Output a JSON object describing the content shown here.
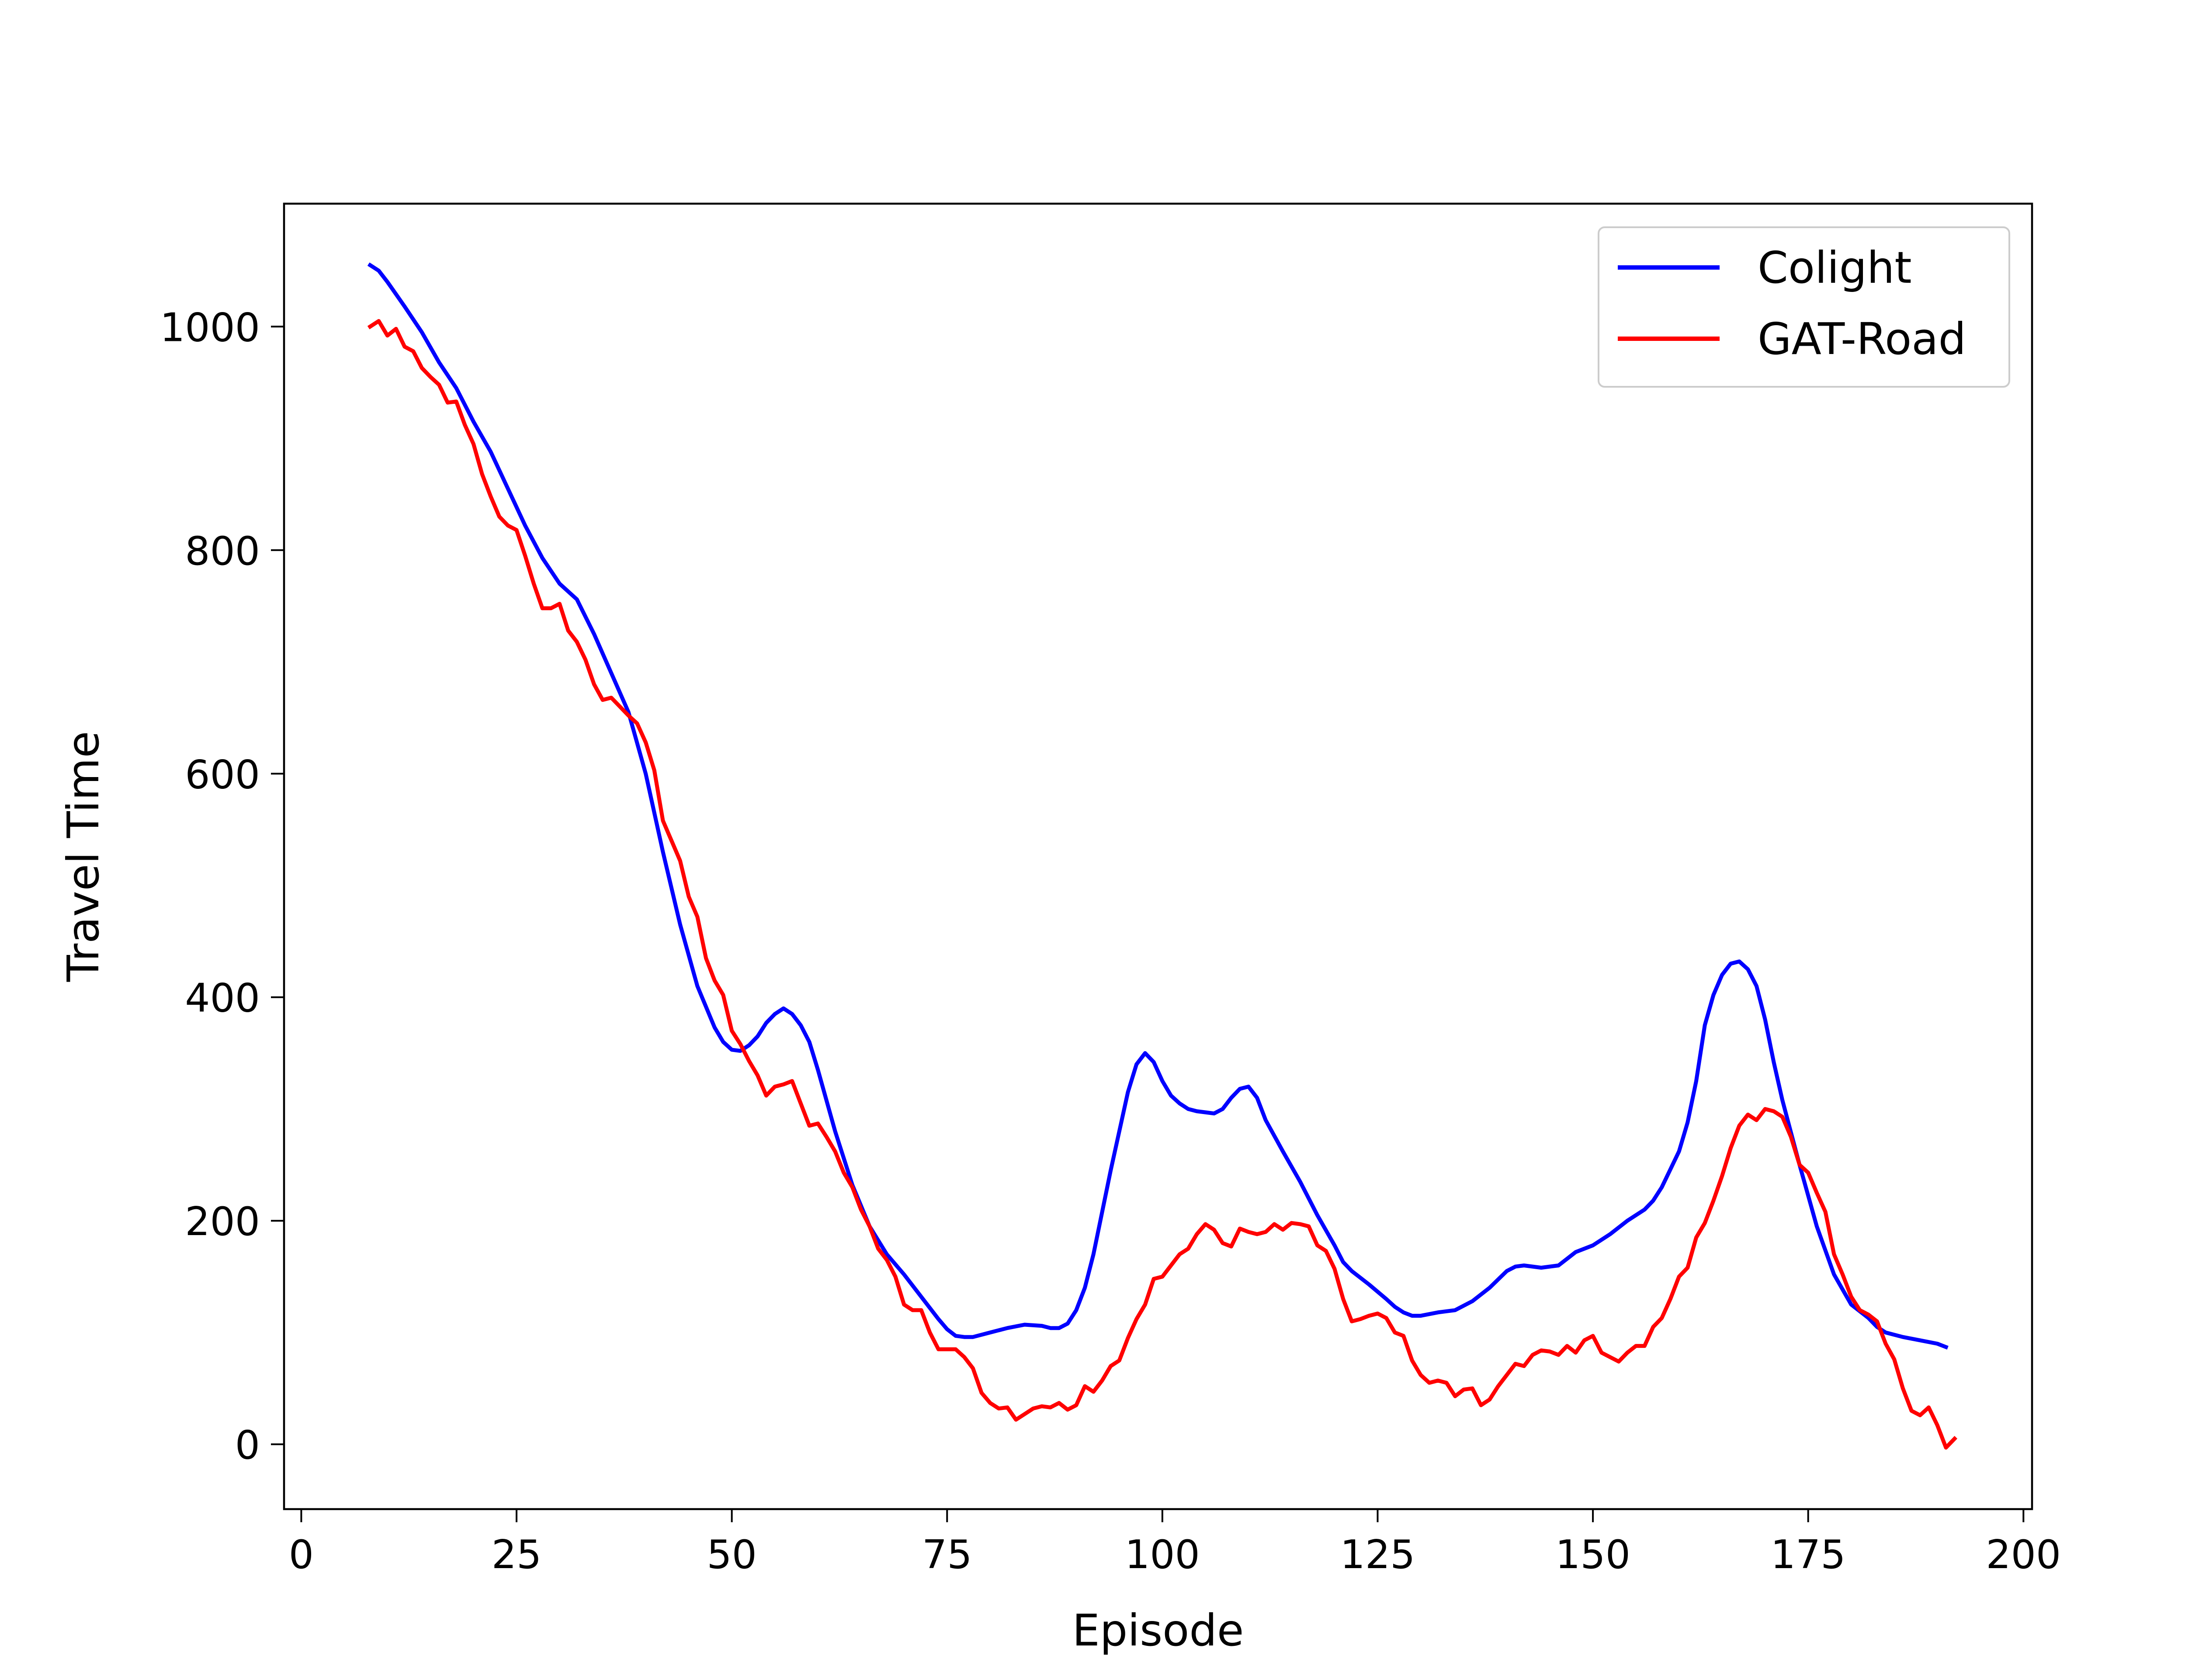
{
  "chart_data": {
    "type": "line",
    "title": "",
    "xlabel": "Episode",
    "ylabel": "Travel Time",
    "xlim": [
      -2,
      201
    ],
    "ylim": [
      -58,
      1110
    ],
    "xticks": [
      0,
      25,
      50,
      75,
      100,
      125,
      150,
      175,
      200
    ],
    "yticks": [
      0,
      200,
      400,
      600,
      800,
      1000
    ],
    "grid": false,
    "legend_position": "top-right",
    "colors": {
      "Colight": "#0000ff",
      "GAT-Road": "#ff0000",
      "axes": "#000000",
      "background": "#ffffff"
    },
    "series": [
      {
        "name": "Colight",
        "points": [
          [
            8,
            1055
          ],
          [
            9,
            1050
          ],
          [
            10,
            1040
          ],
          [
            12,
            1018
          ],
          [
            14,
            995
          ],
          [
            16,
            968
          ],
          [
            18,
            945
          ],
          [
            20,
            915
          ],
          [
            22,
            888
          ],
          [
            24,
            855
          ],
          [
            26,
            822
          ],
          [
            28,
            793
          ],
          [
            30,
            770
          ],
          [
            32,
            756
          ],
          [
            34,
            725
          ],
          [
            36,
            690
          ],
          [
            38,
            655
          ],
          [
            40,
            600
          ],
          [
            42,
            530
          ],
          [
            44,
            465
          ],
          [
            46,
            410
          ],
          [
            48,
            373
          ],
          [
            49,
            360
          ],
          [
            50,
            353
          ],
          [
            51,
            352
          ],
          [
            52,
            357
          ],
          [
            53,
            365
          ],
          [
            54,
            377
          ],
          [
            55,
            385
          ],
          [
            56,
            390
          ],
          [
            57,
            385
          ],
          [
            58,
            375
          ],
          [
            59,
            360
          ],
          [
            60,
            335
          ],
          [
            62,
            280
          ],
          [
            64,
            232
          ],
          [
            66,
            195
          ],
          [
            68,
            170
          ],
          [
            70,
            152
          ],
          [
            72,
            132
          ],
          [
            74,
            112
          ],
          [
            75,
            103
          ],
          [
            76,
            97
          ],
          [
            77,
            96
          ],
          [
            78,
            96
          ],
          [
            80,
            100
          ],
          [
            82,
            104
          ],
          [
            84,
            107
          ],
          [
            86,
            106
          ],
          [
            87,
            104
          ],
          [
            88,
            104
          ],
          [
            89,
            108
          ],
          [
            90,
            120
          ],
          [
            91,
            140
          ],
          [
            92,
            170
          ],
          [
            94,
            245
          ],
          [
            96,
            315
          ],
          [
            97,
            340
          ],
          [
            98,
            350
          ],
          [
            99,
            342
          ],
          [
            100,
            325
          ],
          [
            101,
            312
          ],
          [
            102,
            305
          ],
          [
            103,
            300
          ],
          [
            104,
            298
          ],
          [
            105,
            297
          ],
          [
            106,
            296
          ],
          [
            107,
            300
          ],
          [
            108,
            310
          ],
          [
            109,
            318
          ],
          [
            110,
            320
          ],
          [
            111,
            310
          ],
          [
            112,
            290
          ],
          [
            114,
            262
          ],
          [
            116,
            235
          ],
          [
            118,
            205
          ],
          [
            120,
            178
          ],
          [
            121,
            163
          ],
          [
            122,
            155
          ],
          [
            124,
            143
          ],
          [
            126,
            130
          ],
          [
            127,
            123
          ],
          [
            128,
            118
          ],
          [
            129,
            115
          ],
          [
            130,
            115
          ],
          [
            132,
            118
          ],
          [
            134,
            120
          ],
          [
            136,
            128
          ],
          [
            138,
            140
          ],
          [
            140,
            155
          ],
          [
            141,
            159
          ],
          [
            142,
            160
          ],
          [
            144,
            158
          ],
          [
            146,
            160
          ],
          [
            147,
            166
          ],
          [
            148,
            172
          ],
          [
            150,
            178
          ],
          [
            152,
            188
          ],
          [
            154,
            200
          ],
          [
            156,
            210
          ],
          [
            157,
            218
          ],
          [
            158,
            230
          ],
          [
            160,
            262
          ],
          [
            161,
            288
          ],
          [
            162,
            325
          ],
          [
            163,
            375
          ],
          [
            164,
            402
          ],
          [
            165,
            420
          ],
          [
            166,
            430
          ],
          [
            167,
            432
          ],
          [
            168,
            425
          ],
          [
            169,
            410
          ],
          [
            170,
            380
          ],
          [
            171,
            342
          ],
          [
            172,
            308
          ],
          [
            174,
            250
          ],
          [
            176,
            195
          ],
          [
            178,
            152
          ],
          [
            180,
            125
          ],
          [
            182,
            113
          ],
          [
            183,
            105
          ],
          [
            184,
            100
          ],
          [
            186,
            96
          ],
          [
            188,
            93
          ],
          [
            190,
            90
          ],
          [
            191,
            87
          ]
        ]
      },
      {
        "name": "GAT-Road",
        "points": [
          [
            8,
            1000
          ],
          [
            9,
            1005
          ],
          [
            10,
            992
          ],
          [
            11,
            998
          ],
          [
            12,
            982
          ],
          [
            13,
            978
          ],
          [
            14,
            963
          ],
          [
            15,
            955
          ],
          [
            16,
            948
          ],
          [
            17,
            932
          ],
          [
            18,
            933
          ],
          [
            19,
            912
          ],
          [
            20,
            895
          ],
          [
            21,
            868
          ],
          [
            22,
            848
          ],
          [
            23,
            830
          ],
          [
            24,
            822
          ],
          [
            25,
            818
          ],
          [
            26,
            795
          ],
          [
            27,
            770
          ],
          [
            28,
            748
          ],
          [
            29,
            748
          ],
          [
            30,
            752
          ],
          [
            31,
            728
          ],
          [
            32,
            718
          ],
          [
            33,
            702
          ],
          [
            34,
            680
          ],
          [
            35,
            666
          ],
          [
            36,
            668
          ],
          [
            37,
            660
          ],
          [
            38,
            652
          ],
          [
            39,
            645
          ],
          [
            40,
            628
          ],
          [
            41,
            603
          ],
          [
            42,
            558
          ],
          [
            43,
            540
          ],
          [
            44,
            522
          ],
          [
            45,
            490
          ],
          [
            46,
            472
          ],
          [
            47,
            435
          ],
          [
            48,
            415
          ],
          [
            49,
            402
          ],
          [
            50,
            370
          ],
          [
            51,
            358
          ],
          [
            52,
            343
          ],
          [
            53,
            330
          ],
          [
            54,
            312
          ],
          [
            55,
            320
          ],
          [
            56,
            322
          ],
          [
            57,
            325
          ],
          [
            58,
            305
          ],
          [
            59,
            285
          ],
          [
            60,
            287
          ],
          [
            61,
            275
          ],
          [
            62,
            262
          ],
          [
            63,
            243
          ],
          [
            64,
            230
          ],
          [
            65,
            210
          ],
          [
            66,
            195
          ],
          [
            67,
            175
          ],
          [
            68,
            165
          ],
          [
            69,
            150
          ],
          [
            70,
            125
          ],
          [
            71,
            120
          ],
          [
            72,
            120
          ],
          [
            73,
            100
          ],
          [
            74,
            85
          ],
          [
            75,
            85
          ],
          [
            76,
            85
          ],
          [
            77,
            78
          ],
          [
            78,
            68
          ],
          [
            79,
            46
          ],
          [
            80,
            37
          ],
          [
            81,
            32
          ],
          [
            82,
            33
          ],
          [
            83,
            22
          ],
          [
            84,
            27
          ],
          [
            85,
            32
          ],
          [
            86,
            34
          ],
          [
            87,
            33
          ],
          [
            88,
            37
          ],
          [
            89,
            31
          ],
          [
            90,
            35
          ],
          [
            91,
            52
          ],
          [
            92,
            47
          ],
          [
            93,
            57
          ],
          [
            94,
            70
          ],
          [
            95,
            75
          ],
          [
            96,
            95
          ],
          [
            97,
            112
          ],
          [
            98,
            125
          ],
          [
            99,
            148
          ],
          [
            100,
            150
          ],
          [
            101,
            160
          ],
          [
            102,
            170
          ],
          [
            103,
            175
          ],
          [
            104,
            188
          ],
          [
            105,
            197
          ],
          [
            106,
            192
          ],
          [
            107,
            180
          ],
          [
            108,
            177
          ],
          [
            109,
            193
          ],
          [
            110,
            190
          ],
          [
            111,
            188
          ],
          [
            112,
            190
          ],
          [
            113,
            197
          ],
          [
            114,
            192
          ],
          [
            115,
            198
          ],
          [
            116,
            197
          ],
          [
            117,
            195
          ],
          [
            118,
            178
          ],
          [
            119,
            173
          ],
          [
            120,
            157
          ],
          [
            121,
            130
          ],
          [
            122,
            110
          ],
          [
            123,
            112
          ],
          [
            124,
            115
          ],
          [
            125,
            117
          ],
          [
            126,
            113
          ],
          [
            127,
            100
          ],
          [
            128,
            97
          ],
          [
            129,
            75
          ],
          [
            130,
            62
          ],
          [
            131,
            55
          ],
          [
            132,
            57
          ],
          [
            133,
            55
          ],
          [
            134,
            43
          ],
          [
            135,
            49
          ],
          [
            136,
            50
          ],
          [
            137,
            35
          ],
          [
            138,
            40
          ],
          [
            139,
            52
          ],
          [
            140,
            62
          ],
          [
            141,
            72
          ],
          [
            142,
            70
          ],
          [
            143,
            80
          ],
          [
            144,
            84
          ],
          [
            145,
            83
          ],
          [
            146,
            80
          ],
          [
            147,
            88
          ],
          [
            148,
            82
          ],
          [
            149,
            93
          ],
          [
            150,
            97
          ],
          [
            151,
            82
          ],
          [
            152,
            78
          ],
          [
            153,
            74
          ],
          [
            154,
            82
          ],
          [
            155,
            88
          ],
          [
            156,
            88
          ],
          [
            157,
            105
          ],
          [
            158,
            113
          ],
          [
            159,
            130
          ],
          [
            160,
            150
          ],
          [
            161,
            158
          ],
          [
            162,
            185
          ],
          [
            163,
            198
          ],
          [
            164,
            218
          ],
          [
            165,
            240
          ],
          [
            166,
            265
          ],
          [
            167,
            285
          ],
          [
            168,
            295
          ],
          [
            169,
            290
          ],
          [
            170,
            300
          ],
          [
            171,
            298
          ],
          [
            172,
            293
          ],
          [
            173,
            275
          ],
          [
            174,
            250
          ],
          [
            175,
            243
          ],
          [
            176,
            225
          ],
          [
            177,
            208
          ],
          [
            178,
            170
          ],
          [
            179,
            152
          ],
          [
            180,
            132
          ],
          [
            181,
            120
          ],
          [
            182,
            116
          ],
          [
            183,
            110
          ],
          [
            184,
            90
          ],
          [
            185,
            76
          ],
          [
            186,
            50
          ],
          [
            187,
            30
          ],
          [
            188,
            26
          ],
          [
            189,
            33
          ],
          [
            190,
            17
          ],
          [
            191,
            -3
          ],
          [
            192,
            5
          ]
        ]
      }
    ]
  }
}
